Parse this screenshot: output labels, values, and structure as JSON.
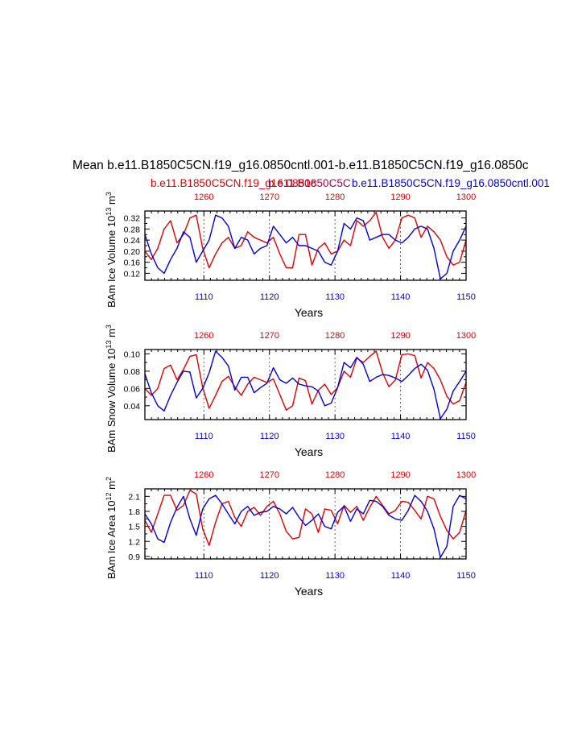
{
  "header": {
    "title": "Mean b.e11.B1850C5CN.f19_g16.0850cntl.001-b.e11.B1850C5CN.f19_g16.0850c",
    "legend_red": "b.e11.B1850C5CN.f19_g16.0850c",
    "legend_overlap": "b.e11.B1850C5C",
    "legend_blue": "b.e11.B1850C5CN.f19_g16.0850cntl.001"
  },
  "colors": {
    "red": "#e00000",
    "blue": "#0000e0",
    "axis": "#000000",
    "grid": "#666666"
  },
  "chart_data": [
    {
      "type": "line",
      "id": "ice-volume",
      "ylabel_main": "BAm Ice Volume 10",
      "ylabel_exp": "13",
      "ylabel_unit": "m",
      "ylabel_unit_exp": "3",
      "xlabel": "Years",
      "xlim": [
        1101,
        1150
      ],
      "x2lim": [
        1251,
        1300
      ],
      "ylim": [
        0.095,
        0.345
      ],
      "yticks": [
        "0.12",
        "0.16",
        "0.20",
        "0.24",
        "0.28",
        "0.32"
      ],
      "xticks": [
        "1110",
        "1120",
        "1130",
        "1140",
        "1150"
      ],
      "x2ticks": [
        "1260",
        "1270",
        "1280",
        "1290",
        "1300"
      ],
      "series": [
        {
          "name": "b.e11.B1850C5CN.f19_g16.0850c",
          "color": "red",
          "values": [
            0.2,
            0.17,
            0.21,
            0.28,
            0.31,
            0.23,
            0.26,
            0.32,
            0.33,
            0.21,
            0.14,
            0.19,
            0.23,
            0.25,
            0.21,
            0.22,
            0.27,
            0.25,
            0.24,
            0.23,
            0.25,
            0.19,
            0.14,
            0.14,
            0.26,
            0.26,
            0.15,
            0.21,
            0.23,
            0.19,
            0.2,
            0.24,
            0.22,
            0.31,
            0.29,
            0.31,
            0.34,
            0.25,
            0.21,
            0.24,
            0.32,
            0.33,
            0.32,
            0.25,
            0.29,
            0.27,
            0.24,
            0.18,
            0.15,
            0.16,
            0.24
          ]
        },
        {
          "name": "b.e11.B1850C5CN.f19_g16.0850cntl.001",
          "color": "blue",
          "values": [
            0.26,
            0.19,
            0.14,
            0.12,
            0.17,
            0.21,
            0.27,
            0.25,
            0.16,
            0.2,
            0.24,
            0.33,
            0.32,
            0.29,
            0.21,
            0.25,
            0.24,
            0.19,
            0.21,
            0.22,
            0.29,
            0.26,
            0.23,
            0.25,
            0.22,
            0.22,
            0.21,
            0.2,
            0.16,
            0.15,
            0.2,
            0.3,
            0.28,
            0.32,
            0.31,
            0.24,
            0.25,
            0.26,
            0.26,
            0.24,
            0.23,
            0.25,
            0.28,
            0.29,
            0.28,
            0.21,
            0.1,
            0.12,
            0.2,
            0.24,
            0.29
          ]
        }
      ]
    },
    {
      "type": "line",
      "id": "snow-volume",
      "ylabel_main": "BAm Snow Volume 10",
      "ylabel_exp": "13",
      "ylabel_unit": "m",
      "ylabel_unit_exp": "3",
      "xlabel": "Years",
      "xlim": [
        1101,
        1150
      ],
      "x2lim": [
        1251,
        1300
      ],
      "ylim": [
        0.024,
        0.105
      ],
      "yticks": [
        "0.04",
        "0.06",
        "0.08",
        "0.10"
      ],
      "xticks": [
        "1110",
        "1120",
        "1130",
        "1140",
        "1150"
      ],
      "x2ticks": [
        "1260",
        "1270",
        "1280",
        "1290",
        "1300"
      ],
      "series": [
        {
          "name": "b.e11.B1850C5CN.f19_g16.0850c",
          "color": "red",
          "values": [
            0.06,
            0.052,
            0.06,
            0.083,
            0.087,
            0.07,
            0.082,
            0.097,
            0.099,
            0.061,
            0.037,
            0.052,
            0.068,
            0.074,
            0.062,
            0.052,
            0.065,
            0.073,
            0.07,
            0.067,
            0.071,
            0.053,
            0.035,
            0.04,
            0.072,
            0.069,
            0.042,
            0.058,
            0.065,
            0.053,
            0.061,
            0.08,
            0.073,
            0.095,
            0.09,
            0.097,
            0.103,
            0.078,
            0.062,
            0.07,
            0.099,
            0.1,
            0.098,
            0.072,
            0.09,
            0.083,
            0.07,
            0.051,
            0.042,
            0.046,
            0.067
          ]
        },
        {
          "name": "b.e11.B1850C5CN.f19_g16.0850cntl.001",
          "color": "blue",
          "values": [
            0.077,
            0.055,
            0.04,
            0.034,
            0.052,
            0.067,
            0.08,
            0.079,
            0.049,
            0.06,
            0.078,
            0.103,
            0.096,
            0.086,
            0.058,
            0.073,
            0.073,
            0.055,
            0.061,
            0.066,
            0.084,
            0.07,
            0.066,
            0.072,
            0.065,
            0.063,
            0.062,
            0.057,
            0.04,
            0.043,
            0.061,
            0.09,
            0.084,
            0.096,
            0.088,
            0.068,
            0.073,
            0.076,
            0.075,
            0.072,
            0.068,
            0.075,
            0.083,
            0.088,
            0.081,
            0.059,
            0.025,
            0.036,
            0.057,
            0.068,
            0.08
          ]
        }
      ]
    },
    {
      "type": "line",
      "id": "ice-area",
      "ylabel_main": "BAm Ice Area 10",
      "ylabel_exp": "12",
      "ylabel_unit": "m",
      "ylabel_unit_exp": "2",
      "xlabel": "Years",
      "xlim": [
        1101,
        1150
      ],
      "x2lim": [
        1251,
        1300
      ],
      "ylim": [
        0.85,
        2.25
      ],
      "yticks": [
        "0.9",
        "1.2",
        "1.5",
        "1.8",
        "2.1"
      ],
      "xticks": [
        "1110",
        "1120",
        "1130",
        "1140",
        "1150"
      ],
      "x2ticks": [
        "1260",
        "1270",
        "1280",
        "1290",
        "1300"
      ],
      "series": [
        {
          "name": "b.e11.B1850C5CN.f19_g16.0850c",
          "color": "red",
          "values": [
            1.62,
            1.38,
            1.75,
            2.12,
            2.12,
            1.82,
            1.92,
            2.22,
            2.15,
            1.45,
            1.12,
            1.58,
            1.95,
            2.0,
            1.68,
            1.5,
            1.8,
            1.88,
            1.72,
            1.9,
            2.0,
            1.75,
            1.4,
            1.25,
            1.28,
            1.85,
            1.75,
            1.38,
            1.85,
            1.82,
            1.55,
            1.92,
            1.78,
            1.9,
            1.62,
            1.88,
            2.1,
            1.92,
            1.75,
            1.82,
            2.0,
            1.98,
            1.82,
            1.65,
            2.1,
            2.05,
            1.7,
            1.42,
            1.25,
            1.38,
            1.82
          ]
        },
        {
          "name": "b.e11.B1850C5CN.f19_g16.0850cntl.001",
          "color": "blue",
          "values": [
            1.75,
            1.55,
            1.25,
            1.18,
            1.58,
            1.88,
            2.1,
            1.65,
            1.32,
            1.85,
            2.05,
            2.12,
            1.95,
            1.75,
            1.55,
            1.8,
            1.9,
            1.72,
            1.78,
            1.8,
            1.9,
            1.85,
            1.75,
            1.88,
            1.68,
            1.52,
            1.62,
            1.75,
            1.5,
            1.45,
            1.78,
            1.9,
            1.6,
            1.85,
            1.75,
            2.02,
            2.0,
            1.9,
            1.72,
            1.65,
            1.62,
            1.82,
            2.12,
            2.0,
            1.8,
            1.45,
            0.88,
            1.1,
            1.9,
            2.12,
            2.05
          ]
        }
      ]
    }
  ]
}
